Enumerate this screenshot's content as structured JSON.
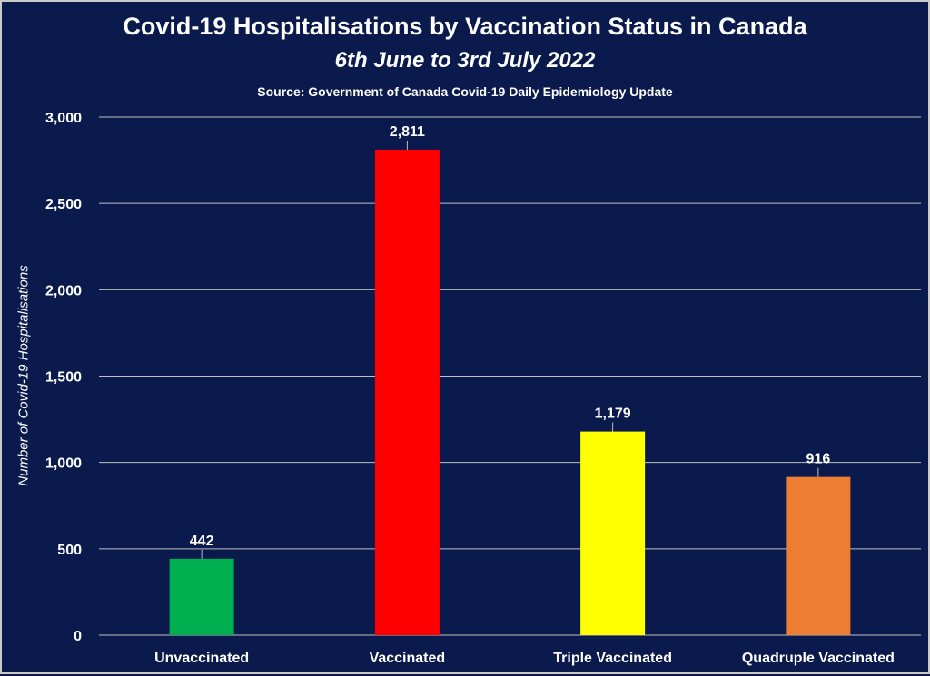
{
  "chart_data": {
    "type": "bar",
    "title": "Covid-19 Hospitalisations by Vaccination Status in Canada",
    "subtitle": "6th June to 3rd July 2022",
    "source": "Source: Government of Canada  Covid-19 Daily Epidemiology Update",
    "xlabel": "",
    "ylabel": "Number of Covid-19 Hospitalisations",
    "ylim": [
      0,
      3000
    ],
    "yticks": [
      0,
      500,
      1000,
      1500,
      2000,
      2500,
      3000
    ],
    "ytick_labels": [
      "0",
      "500",
      "1,000",
      "1,500",
      "2,000",
      "2,500",
      "3,000"
    ],
    "grid": true,
    "categories": [
      "Unvaccinated",
      "Vaccinated",
      "Triple Vaccinated",
      "Quadruple Vaccinated"
    ],
    "values": [
      442,
      2811,
      1179,
      916
    ],
    "data_labels": [
      "442",
      "2,811",
      "1,179",
      "916"
    ],
    "colors": [
      "#00b050",
      "#ff0000",
      "#ffff00",
      "#ed7d31"
    ]
  },
  "colors": {
    "background": "#0a1a4d",
    "text": "#ffffff",
    "gridline": "#bfbfbf"
  }
}
